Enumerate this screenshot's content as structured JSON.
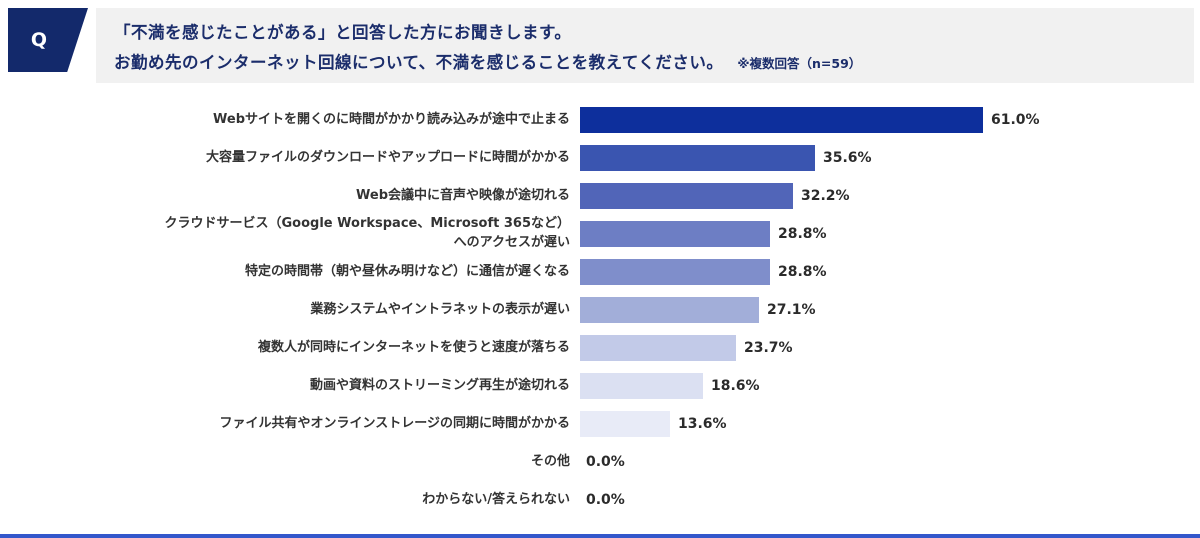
{
  "header": {
    "q_label": "Q",
    "line1": "「不満を感じたことがある」と回答した方にお聞きします。",
    "line2": "お勤め先のインターネット回線について、不満を感じることを教えてください。",
    "note": "※複数回答（n=59）"
  },
  "chart_data": {
    "type": "bar",
    "orientation": "horizontal",
    "title": "お勤め先のインターネット回線について不満を感じること",
    "categories": [
      "Webサイトを開くのに時間がかかり読み込みが途中で止まる",
      "大容量ファイルのダウンロードやアップロードに時間がかかる",
      "Web会議中に音声や映像が途切れる",
      "クラウドサービス（Google Workspace、Microsoft 365など）\nへのアクセスが遅い",
      "特定の時間帯（朝や昼休み明けなど）に通信が遅くなる",
      "業務システムやイントラネットの表示が遅い",
      "複数人が同時にインターネットを使うと速度が落ちる",
      "動画や資料のストリーミング再生が途切れる",
      "ファイル共有やオンラインストレージの同期に時間がかかる",
      "その他",
      "わからない/答えられない"
    ],
    "values": [
      61.0,
      35.6,
      32.2,
      28.8,
      28.8,
      27.1,
      23.7,
      18.6,
      13.6,
      0.0,
      0.0
    ],
    "value_labels": [
      "61.0%",
      "35.6%",
      "32.2%",
      "28.8%",
      "28.8%",
      "27.1%",
      "23.7%",
      "18.6%",
      "13.6%",
      "0.0%",
      "0.0%"
    ],
    "bar_colors": [
      "#0d2f9c",
      "#3a55b0",
      "#5165b8",
      "#6d7ec4",
      "#7f8ecb",
      "#a2aed9",
      "#c2cae8",
      "#dbe0f2",
      "#e8ebf7",
      "#ffffff",
      "#ffffff"
    ],
    "xlim": [
      0,
      65
    ],
    "legend": false,
    "sample_size_note": "n=59"
  },
  "footer": {
    "accent_color": "#3357cb"
  }
}
